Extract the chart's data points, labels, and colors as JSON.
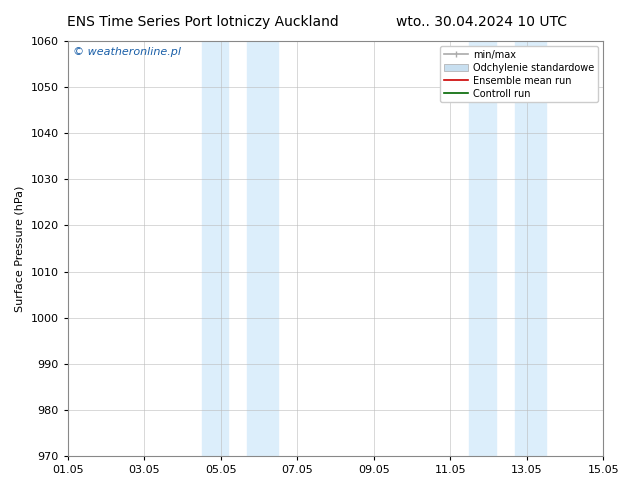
{
  "title_left": "ENS Time Series Port lotniczy Auckland",
  "title_right": "wto.. 30.04.2024 10 UTC",
  "ylabel": "Surface Pressure (hPa)",
  "ylim": [
    970,
    1060
  ],
  "yticks": [
    970,
    980,
    990,
    1000,
    1010,
    1020,
    1030,
    1040,
    1050,
    1060
  ],
  "xlim_start": 0,
  "xlim_end": 14,
  "xtick_labels": [
    "01.05",
    "03.05",
    "05.05",
    "07.05",
    "09.05",
    "11.05",
    "13.05",
    "15.05"
  ],
  "xtick_positions": [
    0,
    2,
    4,
    6,
    8,
    10,
    12,
    14
  ],
  "shaded_regions": [
    {
      "xstart": 3.5,
      "xend": 4.2,
      "color": "#dceefb"
    },
    {
      "xstart": 4.7,
      "xend": 5.5,
      "color": "#dceefb"
    },
    {
      "xstart": 10.5,
      "xend": 11.2,
      "color": "#dceefb"
    },
    {
      "xstart": 11.7,
      "xend": 12.5,
      "color": "#dceefb"
    }
  ],
  "watermark_text": "© weatheronline.pl",
  "watermark_color": "#1a5fa8",
  "legend_items": [
    {
      "label": "min/max",
      "color": "#aaaaaa",
      "lw": 1.2
    },
    {
      "label": "Odchylenie standardowe",
      "color": "#c8dff0",
      "lw": 8
    },
    {
      "label": "Ensemble mean run",
      "color": "#cc0000",
      "lw": 1.2
    },
    {
      "label": "Controll run",
      "color": "#006600",
      "lw": 1.2
    }
  ],
  "background_color": "#ffffff",
  "grid_color": "#bbbbbb",
  "title_fontsize": 10,
  "tick_fontsize": 8,
  "ylabel_fontsize": 8
}
